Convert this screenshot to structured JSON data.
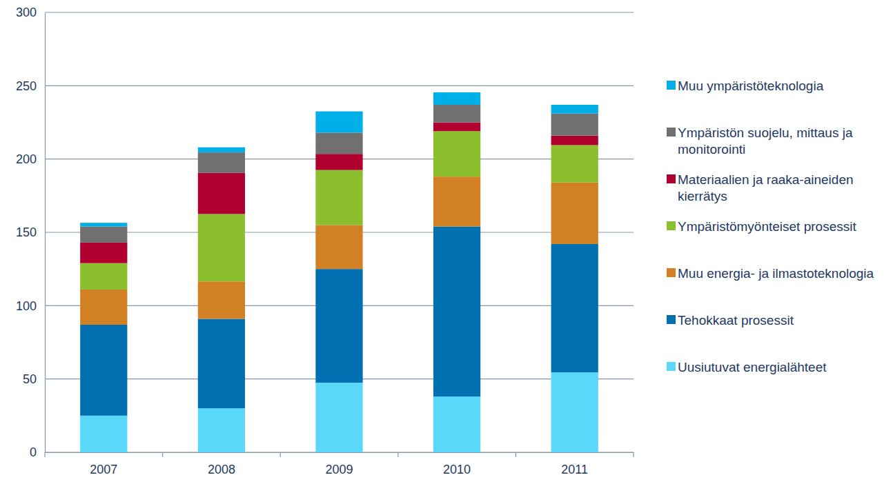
{
  "chart_data": {
    "type": "bar",
    "stacked": true,
    "grid": true,
    "legend": "right",
    "categories": [
      "2007",
      "2008",
      "2009",
      "2010",
      "2011"
    ],
    "ylim": [
      0,
      300
    ],
    "yticks": [
      0,
      50,
      100,
      150,
      200,
      250,
      300
    ],
    "series": [
      {
        "name": "Uusiutuvat energialähteet",
        "color": "#5ad8fa",
        "values": [
          25,
          30,
          47.5,
          38,
          54.5
        ]
      },
      {
        "name": "Tehokkaat prosessit",
        "color": "#0070b0",
        "values": [
          62,
          61,
          77.5,
          116,
          87.5
        ]
      },
      {
        "name": "Muu energia- ja ilmastoteknologia",
        "color": "#d28024",
        "values": [
          24,
          25.5,
          30,
          34,
          42
        ]
      },
      {
        "name": "Ympäristömyönteiset prosessit",
        "color": "#8cbf2e",
        "values": [
          18,
          46,
          37.5,
          31,
          25.5
        ]
      },
      {
        "name": "Materiaalien ja raaka-aineiden kierrätys",
        "color": "#b0002f",
        "values": [
          14,
          28,
          11,
          6,
          6.5
        ]
      },
      {
        "name": "Ympäristön suojelu, mittaus ja monitorointi",
        "color": "#707070",
        "values": [
          11,
          14,
          14.5,
          12,
          15
        ]
      },
      {
        "name": "Muu ympäristöteknologia",
        "color": "#00aee8",
        "values": [
          2.5,
          3.5,
          14.5,
          8.5,
          6
        ]
      }
    ]
  }
}
